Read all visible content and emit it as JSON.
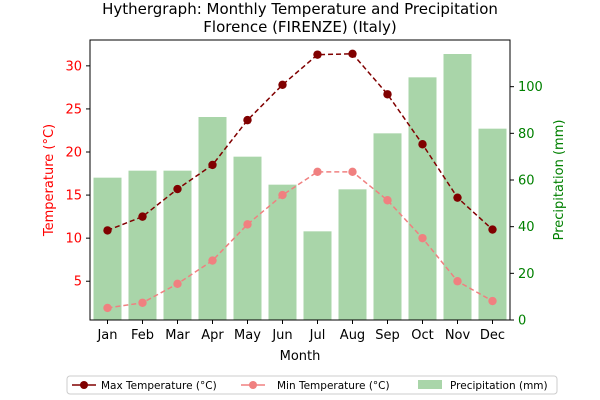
{
  "chart_data": {
    "type": "bar+line",
    "title": "Hythergraph: Monthly Temperature and Precipitation",
    "subtitle": "Florence (FIRENZE) (Italy)",
    "xlabel": "Month",
    "ylabel_left": "Temperature (°C)",
    "ylabel_right": "Precipitation (mm)",
    "categories": [
      "Jan",
      "Feb",
      "Mar",
      "Apr",
      "May",
      "Jun",
      "Jul",
      "Aug",
      "Sep",
      "Oct",
      "Nov",
      "Dec"
    ],
    "ylim_left": [
      0.5,
      33
    ],
    "yticks_left": [
      5,
      10,
      15,
      20,
      25,
      30
    ],
    "ylim_right": [
      0,
      120
    ],
    "yticks_right": [
      0,
      20,
      40,
      60,
      80,
      100
    ],
    "series": [
      {
        "name": "Max Temperature (°C)",
        "kind": "line",
        "axis": "left",
        "color": "#800000",
        "linestyle": "dashed",
        "marker": "circle",
        "values": [
          10.9,
          12.5,
          15.7,
          18.5,
          23.7,
          27.8,
          31.3,
          31.4,
          26.7,
          20.9,
          14.7,
          11.0
        ]
      },
      {
        "name": "Min Temperature (°C)",
        "kind": "line",
        "axis": "left",
        "color": "#f08080",
        "linestyle": "dashed",
        "marker": "circle",
        "values": [
          1.9,
          2.5,
          4.7,
          7.4,
          11.6,
          15.0,
          17.7,
          17.7,
          14.4,
          10.0,
          5.0,
          2.7
        ]
      },
      {
        "name": "Precipitation (mm)",
        "kind": "bar",
        "axis": "right",
        "color": "#a9d5a9",
        "values": [
          61,
          64,
          64,
          87,
          70,
          58,
          38,
          56,
          80,
          104,
          114,
          82
        ]
      }
    ],
    "colors": {
      "left_axis": "#ff0000",
      "right_axis": "#008000"
    },
    "legend_position": "bottom"
  }
}
